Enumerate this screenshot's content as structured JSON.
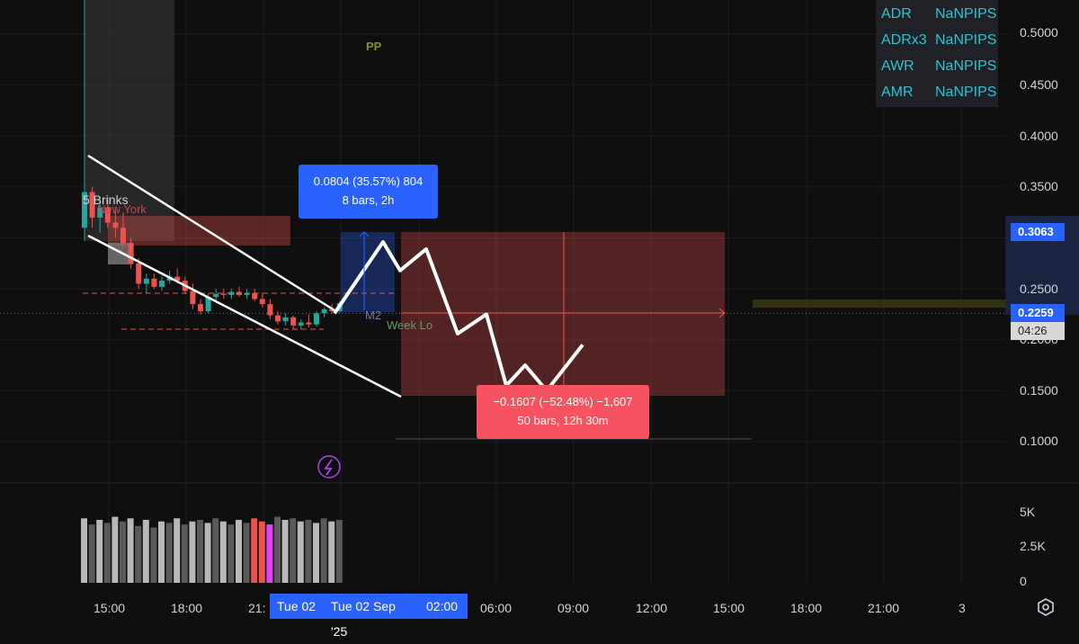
{
  "colors": {
    "background": "#0f0f0f",
    "bullish": "#26a69a",
    "bearish": "#ef5350",
    "accent_blue": "#2962ff",
    "measure_red": "#f7525f",
    "table_text": "#2ec4d4"
  },
  "overlay_table": {
    "rows": [
      {
        "name": "ADR",
        "value": "NaNPIPS"
      },
      {
        "name": "ADRx3",
        "value": "NaNPIPS"
      },
      {
        "name": "AWR",
        "value": "NaNPIPS"
      },
      {
        "name": "AMR",
        "value": "NaNPIPS"
      }
    ]
  },
  "price_axis": {
    "ticks": [
      "0.5000",
      "0.4500",
      "0.4000",
      "0.3500",
      "0.2500",
      "0.2000",
      "0.1500",
      "0.1000"
    ],
    "tags": {
      "high": "0.3063",
      "last": "0.2259",
      "countdown": "04:26"
    }
  },
  "volume_axis": {
    "ticks": [
      "5K",
      "2.5K",
      "0"
    ]
  },
  "time_axis": {
    "ticks": [
      "15:00",
      "18:00",
      "21:",
      "Tue 02",
      "06:00",
      "09:00",
      "12:00",
      "15:00",
      "18:00",
      "21:00",
      "3"
    ],
    "highlight": {
      "date": "Tue 02 Sep '25",
      "time": "02:00"
    }
  },
  "chart_labels": {
    "brinks": "5 Brinks",
    "session": "New York",
    "pivot": "PP",
    "m2": "M2",
    "week_low": "Week Lo"
  },
  "measure_up": {
    "line1": "0.0804 (35.57%) 804",
    "line2": "8 bars, 2h"
  },
  "measure_down": {
    "line1": "−0.1607 (−52.48%) −1,607",
    "line2": "50 bars, 12h 30m"
  },
  "chart_data": {
    "type": "candlestick",
    "title": "",
    "ylim": [
      0.08,
      0.52
    ],
    "y_ticks": [
      0.1,
      0.15,
      0.2,
      0.25,
      0.3,
      0.35,
      0.4,
      0.45,
      0.5
    ],
    "last_price": 0.2259,
    "long_position": {
      "entry": 0.2259,
      "target": 0.3063,
      "change": 0.0804,
      "percent": 35.57,
      "bars": 8
    },
    "short_position": {
      "entry": 0.3063,
      "target": 0.1456,
      "change": -0.1607,
      "percent": -52.48,
      "bars": 50
    },
    "candles": [
      [
        0.31,
        0.355,
        0.3,
        0.345
      ],
      [
        0.345,
        0.35,
        0.31,
        0.32
      ],
      [
        0.32,
        0.34,
        0.305,
        0.33
      ],
      [
        0.33,
        0.34,
        0.31,
        0.315
      ],
      [
        0.315,
        0.33,
        0.3,
        0.31
      ],
      [
        0.31,
        0.325,
        0.29,
        0.295
      ],
      [
        0.295,
        0.3,
        0.27,
        0.275
      ],
      [
        0.275,
        0.28,
        0.25,
        0.255
      ],
      [
        0.255,
        0.265,
        0.245,
        0.26
      ],
      [
        0.26,
        0.265,
        0.25,
        0.252
      ],
      [
        0.252,
        0.262,
        0.248,
        0.258
      ],
      [
        0.258,
        0.268,
        0.255,
        0.262
      ],
      [
        0.262,
        0.27,
        0.255,
        0.258
      ],
      [
        0.258,
        0.262,
        0.245,
        0.248
      ],
      [
        0.248,
        0.255,
        0.23,
        0.235
      ],
      [
        0.235,
        0.24,
        0.225,
        0.228
      ],
      [
        0.228,
        0.245,
        0.226,
        0.242
      ],
      [
        0.242,
        0.25,
        0.238,
        0.245
      ],
      [
        0.245,
        0.25,
        0.24,
        0.244
      ],
      [
        0.244,
        0.25,
        0.24,
        0.247
      ],
      [
        0.247,
        0.252,
        0.242,
        0.244
      ],
      [
        0.244,
        0.25,
        0.24,
        0.246
      ],
      [
        0.246,
        0.25,
        0.238,
        0.24
      ],
      [
        0.24,
        0.246,
        0.232,
        0.235
      ],
      [
        0.235,
        0.24,
        0.22,
        0.224
      ],
      [
        0.224,
        0.228,
        0.215,
        0.218
      ],
      [
        0.218,
        0.226,
        0.214,
        0.222
      ],
      [
        0.222,
        0.224,
        0.21,
        0.214
      ],
      [
        0.214,
        0.22,
        0.21,
        0.217
      ],
      [
        0.217,
        0.225,
        0.212,
        0.215
      ],
      [
        0.215,
        0.228,
        0.213,
        0.226
      ],
      [
        0.226,
        0.232,
        0.222,
        0.23
      ],
      [
        0.23,
        0.235,
        0.226,
        0.228
      ],
      [
        0.228,
        0.238,
        0.226,
        0.236
      ]
    ],
    "projection": [
      0.2259,
      0.296,
      0.268,
      0.289,
      0.206,
      0.225,
      0.155,
      0.175,
      0.15,
      0.195
    ],
    "volume": [
      4200,
      3800,
      4100,
      3900,
      4300,
      4000,
      4200,
      3700,
      4100,
      3600,
      4000,
      3900,
      4200,
      3800,
      4000,
      4100,
      3900,
      4200,
      4000,
      3800,
      4100,
      3900,
      4200,
      4000,
      3800,
      4300,
      4100,
      4200,
      4000,
      4100,
      3900,
      4200,
      4000,
      4100
    ],
    "volume_ylim": [
      0,
      6500
    ],
    "volume_ticks": [
      0,
      2500,
      5000
    ]
  }
}
